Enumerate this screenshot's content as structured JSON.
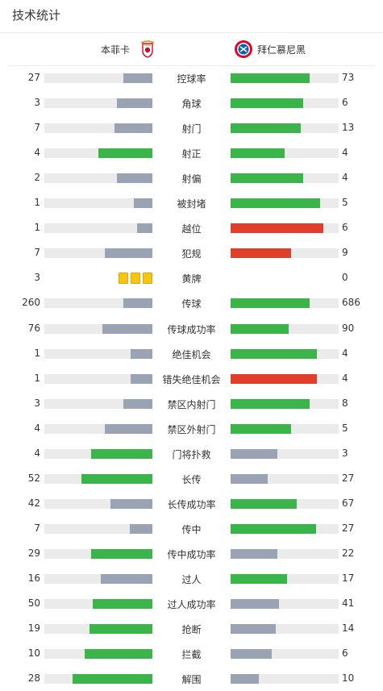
{
  "title": "技术统计",
  "home_team": {
    "name": "本菲卡",
    "logo_icon": "benfica-crest-icon"
  },
  "away_team": {
    "name": "拜仁慕尼黑",
    "logo_icon": "bayern-crest-icon"
  },
  "colors": {
    "better": "#3bb54a",
    "worse": "#9aa3b3",
    "alert": "#e03f2b",
    "track": "#ebebeb",
    "card": "#f5c518"
  },
  "stats": [
    {
      "label": "控球率",
      "home": "27",
      "away": "73",
      "home_fill": 0.27,
      "away_fill": 0.73,
      "home_color": "worse",
      "away_color": "better"
    },
    {
      "label": "角球",
      "home": "3",
      "away": "6",
      "home_fill": 0.33,
      "away_fill": 0.67,
      "home_color": "worse",
      "away_color": "better"
    },
    {
      "label": "射门",
      "home": "7",
      "away": "13",
      "home_fill": 0.35,
      "away_fill": 0.65,
      "home_color": "worse",
      "away_color": "better"
    },
    {
      "label": "射正",
      "home": "4",
      "away": "4",
      "home_fill": 0.5,
      "away_fill": 0.5,
      "home_color": "better",
      "away_color": "better"
    },
    {
      "label": "射偏",
      "home": "2",
      "away": "4",
      "home_fill": 0.33,
      "away_fill": 0.67,
      "home_color": "worse",
      "away_color": "better"
    },
    {
      "label": "被封堵",
      "home": "1",
      "away": "5",
      "home_fill": 0.17,
      "away_fill": 0.83,
      "home_color": "worse",
      "away_color": "better"
    },
    {
      "label": "越位",
      "home": "1",
      "away": "6",
      "home_fill": 0.14,
      "away_fill": 0.86,
      "home_color": "worse",
      "away_color": "alert"
    },
    {
      "label": "犯规",
      "home": "7",
      "away": "9",
      "home_fill": 0.44,
      "away_fill": 0.56,
      "home_color": "worse",
      "away_color": "alert"
    },
    {
      "label": "黄牌",
      "home": "3",
      "away": "0",
      "home_cards": 3,
      "away_cards": 0
    },
    {
      "label": "传球",
      "home": "260",
      "away": "686",
      "home_fill": 0.27,
      "away_fill": 0.73,
      "home_color": "worse",
      "away_color": "better"
    },
    {
      "label": "传球成功率",
      "home": "76",
      "away": "90",
      "home_fill": 0.46,
      "away_fill": 0.54,
      "home_color": "worse",
      "away_color": "better"
    },
    {
      "label": "绝佳机会",
      "home": "1",
      "away": "4",
      "home_fill": 0.2,
      "away_fill": 0.8,
      "home_color": "worse",
      "away_color": "better"
    },
    {
      "label": "错失绝佳机会",
      "home": "1",
      "away": "4",
      "home_fill": 0.2,
      "away_fill": 0.8,
      "home_color": "worse",
      "away_color": "alert"
    },
    {
      "label": "禁区内射门",
      "home": "3",
      "away": "8",
      "home_fill": 0.27,
      "away_fill": 0.73,
      "home_color": "worse",
      "away_color": "better"
    },
    {
      "label": "禁区外射门",
      "home": "4",
      "away": "5",
      "home_fill": 0.44,
      "away_fill": 0.56,
      "home_color": "worse",
      "away_color": "better"
    },
    {
      "label": "门将扑救",
      "home": "4",
      "away": "3",
      "home_fill": 0.57,
      "away_fill": 0.43,
      "home_color": "better",
      "away_color": "worse"
    },
    {
      "label": "长传",
      "home": "52",
      "away": "27",
      "home_fill": 0.66,
      "away_fill": 0.34,
      "home_color": "better",
      "away_color": "worse"
    },
    {
      "label": "长传成功率",
      "home": "42",
      "away": "67",
      "home_fill": 0.39,
      "away_fill": 0.61,
      "home_color": "worse",
      "away_color": "better"
    },
    {
      "label": "传中",
      "home": "7",
      "away": "27",
      "home_fill": 0.21,
      "away_fill": 0.79,
      "home_color": "worse",
      "away_color": "better"
    },
    {
      "label": "传中成功率",
      "home": "29",
      "away": "22",
      "home_fill": 0.57,
      "away_fill": 0.43,
      "home_color": "better",
      "away_color": "worse"
    },
    {
      "label": "过人",
      "home": "16",
      "away": "17",
      "home_fill": 0.48,
      "away_fill": 0.52,
      "home_color": "worse",
      "away_color": "better"
    },
    {
      "label": "过人成功率",
      "home": "50",
      "away": "41",
      "home_fill": 0.55,
      "away_fill": 0.45,
      "home_color": "better",
      "away_color": "worse"
    },
    {
      "label": "抢断",
      "home": "19",
      "away": "14",
      "home_fill": 0.58,
      "away_fill": 0.42,
      "home_color": "better",
      "away_color": "worse"
    },
    {
      "label": "拦截",
      "home": "10",
      "away": "6",
      "home_fill": 0.63,
      "away_fill": 0.38,
      "home_color": "better",
      "away_color": "worse"
    },
    {
      "label": "解围",
      "home": "28",
      "away": "10",
      "home_fill": 0.74,
      "away_fill": 0.26,
      "home_color": "better",
      "away_color": "worse"
    }
  ]
}
